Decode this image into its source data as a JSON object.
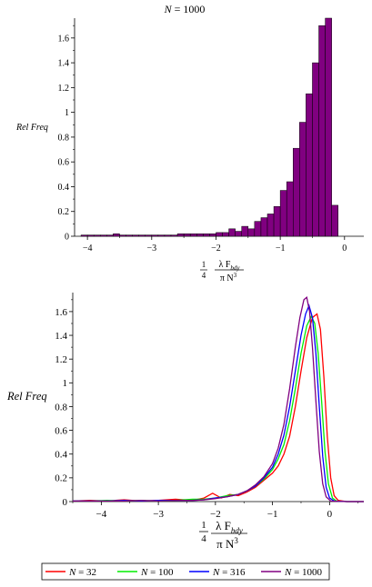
{
  "chart_data": [
    {
      "type": "bar",
      "title": "N = 1000",
      "title_var": "N",
      "title_rest": " = 1000",
      "ylabel": "Rel Freq",
      "xlabel": {
        "coef_num": "1",
        "coef_den": "4",
        "num_lambda": "λ F",
        "num_sub": "bdy",
        "den_pi": "π N",
        "den_sup": "3"
      },
      "xlim": [
        -4.2,
        0.3
      ],
      "ylim": [
        0,
        1.76
      ],
      "xticks": [
        -4,
        -3,
        -2,
        -1,
        0
      ],
      "xtick_labels": [
        "−4",
        "−3",
        "−2",
        "−1",
        "0"
      ],
      "yticks": [
        0,
        0.2,
        0.4,
        0.6,
        0.8,
        1,
        1.2,
        1.4,
        1.6
      ],
      "ytick_labels": [
        "0",
        "0.2",
        "0.4",
        "0.6",
        "0.8",
        "1",
        "1.2",
        "1.4",
        "1.6"
      ],
      "bar_color": "#800080",
      "bin_width": 0.1,
      "bins": [
        {
          "x0": -4.1,
          "value": 0.01
        },
        {
          "x0": -4.0,
          "value": 0.01
        },
        {
          "x0": -3.9,
          "value": 0.01
        },
        {
          "x0": -3.8,
          "value": 0.01
        },
        {
          "x0": -3.7,
          "value": 0.01
        },
        {
          "x0": -3.6,
          "value": 0.02
        },
        {
          "x0": -3.5,
          "value": 0.01
        },
        {
          "x0": -3.4,
          "value": 0.01
        },
        {
          "x0": -3.3,
          "value": 0.01
        },
        {
          "x0": -3.2,
          "value": 0.01
        },
        {
          "x0": -3.1,
          "value": 0.01
        },
        {
          "x0": -3.0,
          "value": 0.01
        },
        {
          "x0": -2.9,
          "value": 0.01
        },
        {
          "x0": -2.8,
          "value": 0.01
        },
        {
          "x0": -2.7,
          "value": 0.01
        },
        {
          "x0": -2.6,
          "value": 0.02
        },
        {
          "x0": -2.5,
          "value": 0.02
        },
        {
          "x0": -2.4,
          "value": 0.02
        },
        {
          "x0": -2.3,
          "value": 0.02
        },
        {
          "x0": -2.2,
          "value": 0.02
        },
        {
          "x0": -2.1,
          "value": 0.02
        },
        {
          "x0": -2.0,
          "value": 0.03
        },
        {
          "x0": -1.9,
          "value": 0.03
        },
        {
          "x0": -1.8,
          "value": 0.06
        },
        {
          "x0": -1.7,
          "value": 0.04
        },
        {
          "x0": -1.6,
          "value": 0.08
        },
        {
          "x0": -1.5,
          "value": 0.06
        },
        {
          "x0": -1.4,
          "value": 0.12
        },
        {
          "x0": -1.3,
          "value": 0.15
        },
        {
          "x0": -1.2,
          "value": 0.18
        },
        {
          "x0": -1.1,
          "value": 0.24
        },
        {
          "x0": -1.0,
          "value": 0.37
        },
        {
          "x0": -0.9,
          "value": 0.44
        },
        {
          "x0": -0.8,
          "value": 0.71
        },
        {
          "x0": -0.7,
          "value": 0.92
        },
        {
          "x0": -0.6,
          "value": 1.15
        },
        {
          "x0": -0.5,
          "value": 1.4
        },
        {
          "x0": -0.4,
          "value": 1.7
        },
        {
          "x0": -0.3,
          "value": 1.76
        },
        {
          "x0": -0.2,
          "value": 0.25
        }
      ]
    },
    {
      "type": "line",
      "ylabel": "Rel Freq",
      "xlabel": {
        "coef_num": "1",
        "coef_den": "4",
        "num_lambda": "λ F",
        "num_sub": "bdy",
        "den_pi": "π N",
        "den_sup": "3"
      },
      "xlim": [
        -4.5,
        0.6
      ],
      "ylim": [
        0,
        1.76
      ],
      "xticks": [
        -4,
        -3,
        -2,
        -1,
        0
      ],
      "xtick_labels": [
        "−4",
        "−3",
        "−2",
        "−1",
        "0"
      ],
      "yticks": [
        0,
        0.2,
        0.4,
        0.6,
        0.8,
        1,
        1.2,
        1.4,
        1.6
      ],
      "ytick_labels": [
        "0",
        "0.2",
        "0.4",
        "0.6",
        "0.8",
        "1",
        "1.2",
        "1.4",
        "1.6"
      ],
      "legend_position": "bottom",
      "series": [
        {
          "name": "N = 32",
          "var": "N",
          "rest": " = 32",
          "color": "#ff0000",
          "points": [
            [
              -4.5,
              0.005
            ],
            [
              -4.2,
              0.01
            ],
            [
              -3.9,
              0.005
            ],
            [
              -3.6,
              0.015
            ],
            [
              -3.3,
              0.005
            ],
            [
              -3.0,
              0.01
            ],
            [
              -2.7,
              0.02
            ],
            [
              -2.4,
              0.01
            ],
            [
              -2.2,
              0.03
            ],
            [
              -2.05,
              0.07
            ],
            [
              -1.9,
              0.03
            ],
            [
              -1.75,
              0.06
            ],
            [
              -1.6,
              0.05
            ],
            [
              -1.45,
              0.08
            ],
            [
              -1.3,
              0.12
            ],
            [
              -1.15,
              0.18
            ],
            [
              -1.0,
              0.24
            ],
            [
              -0.9,
              0.3
            ],
            [
              -0.8,
              0.4
            ],
            [
              -0.7,
              0.55
            ],
            [
              -0.6,
              0.8
            ],
            [
              -0.5,
              1.1
            ],
            [
              -0.4,
              1.38
            ],
            [
              -0.3,
              1.55
            ],
            [
              -0.22,
              1.58
            ],
            [
              -0.16,
              1.45
            ],
            [
              -0.1,
              1.05
            ],
            [
              -0.04,
              0.55
            ],
            [
              0.02,
              0.2
            ],
            [
              0.08,
              0.05
            ],
            [
              0.15,
              0.01
            ],
            [
              0.3,
              0.0
            ],
            [
              0.6,
              0.0
            ]
          ]
        },
        {
          "name": "N = 100",
          "var": "N",
          "rest": " = 100",
          "color": "#00ee00",
          "points": [
            [
              -4.5,
              0.005
            ],
            [
              -4.2,
              0.005
            ],
            [
              -3.9,
              0.01
            ],
            [
              -3.6,
              0.005
            ],
            [
              -3.3,
              0.01
            ],
            [
              -3.0,
              0.005
            ],
            [
              -2.7,
              0.01
            ],
            [
              -2.4,
              0.02
            ],
            [
              -2.2,
              0.02
            ],
            [
              -2.0,
              0.03
            ],
            [
              -1.8,
              0.05
            ],
            [
              -1.6,
              0.06
            ],
            [
              -1.45,
              0.09
            ],
            [
              -1.3,
              0.13
            ],
            [
              -1.15,
              0.19
            ],
            [
              -1.0,
              0.27
            ],
            [
              -0.9,
              0.36
            ],
            [
              -0.8,
              0.48
            ],
            [
              -0.7,
              0.68
            ],
            [
              -0.6,
              0.95
            ],
            [
              -0.5,
              1.25
            ],
            [
              -0.4,
              1.48
            ],
            [
              -0.32,
              1.56
            ],
            [
              -0.26,
              1.5
            ],
            [
              -0.2,
              1.25
            ],
            [
              -0.14,
              0.85
            ],
            [
              -0.08,
              0.42
            ],
            [
              -0.02,
              0.15
            ],
            [
              0.05,
              0.03
            ],
            [
              0.12,
              0.005
            ],
            [
              0.3,
              0.0
            ],
            [
              0.6,
              0.0
            ]
          ]
        },
        {
          "name": "N = 316",
          "var": "N",
          "rest": " = 316",
          "color": "#0000ff",
          "points": [
            [
              -4.5,
              0.005
            ],
            [
              -4.2,
              0.005
            ],
            [
              -3.9,
              0.005
            ],
            [
              -3.6,
              0.01
            ],
            [
              -3.3,
              0.005
            ],
            [
              -3.0,
              0.01
            ],
            [
              -2.7,
              0.01
            ],
            [
              -2.4,
              0.01
            ],
            [
              -2.2,
              0.015
            ],
            [
              -2.0,
              0.03
            ],
            [
              -1.8,
              0.04
            ],
            [
              -1.6,
              0.06
            ],
            [
              -1.45,
              0.09
            ],
            [
              -1.3,
              0.13
            ],
            [
              -1.15,
              0.2
            ],
            [
              -1.0,
              0.29
            ],
            [
              -0.9,
              0.4
            ],
            [
              -0.8,
              0.56
            ],
            [
              -0.7,
              0.8
            ],
            [
              -0.6,
              1.1
            ],
            [
              -0.5,
              1.4
            ],
            [
              -0.42,
              1.58
            ],
            [
              -0.36,
              1.65
            ],
            [
              -0.3,
              1.55
            ],
            [
              -0.24,
              1.25
            ],
            [
              -0.18,
              0.8
            ],
            [
              -0.12,
              0.38
            ],
            [
              -0.06,
              0.12
            ],
            [
              0.0,
              0.03
            ],
            [
              0.08,
              0.005
            ],
            [
              0.3,
              0.0
            ],
            [
              0.6,
              0.0
            ]
          ]
        },
        {
          "name": "N = 1000",
          "var": "N",
          "rest": " = 1000",
          "color": "#800080",
          "points": [
            [
              -4.5,
              0.005
            ],
            [
              -4.2,
              0.005
            ],
            [
              -3.9,
              0.005
            ],
            [
              -3.6,
              0.005
            ],
            [
              -3.3,
              0.01
            ],
            [
              -3.0,
              0.005
            ],
            [
              -2.7,
              0.01
            ],
            [
              -2.4,
              0.01
            ],
            [
              -2.2,
              0.015
            ],
            [
              -2.0,
              0.025
            ],
            [
              -1.8,
              0.04
            ],
            [
              -1.6,
              0.06
            ],
            [
              -1.45,
              0.09
            ],
            [
              -1.3,
              0.14
            ],
            [
              -1.15,
              0.21
            ],
            [
              -1.0,
              0.32
            ],
            [
              -0.9,
              0.45
            ],
            [
              -0.8,
              0.65
            ],
            [
              -0.7,
              0.95
            ],
            [
              -0.6,
              1.3
            ],
            [
              -0.52,
              1.55
            ],
            [
              -0.45,
              1.7
            ],
            [
              -0.4,
              1.72
            ],
            [
              -0.35,
              1.6
            ],
            [
              -0.3,
              1.3
            ],
            [
              -0.24,
              0.85
            ],
            [
              -0.18,
              0.42
            ],
            [
              -0.12,
              0.15
            ],
            [
              -0.06,
              0.04
            ],
            [
              0.02,
              0.005
            ],
            [
              0.3,
              0.0
            ],
            [
              0.6,
              0.0
            ]
          ]
        }
      ]
    }
  ]
}
